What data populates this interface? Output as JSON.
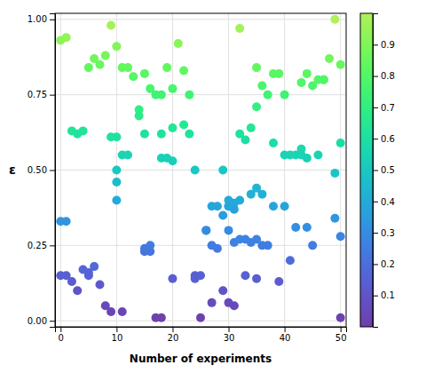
{
  "chart_data": {
    "type": "scatter",
    "xlabel": "Number of experiments",
    "ylabel": "ε",
    "xlim": [
      -1,
      51
    ],
    "ylim": [
      -0.02,
      1.02
    ],
    "xticks": [
      0,
      10,
      20,
      30,
      40,
      50
    ],
    "yticks": [
      {
        "value": 0,
        "label": "0.00"
      },
      {
        "value": 0.25,
        "label": "0.25"
      },
      {
        "value": 0.5,
        "label": "0.50"
      },
      {
        "value": 0.75,
        "label": "0.75"
      },
      {
        "value": 1.0,
        "label": "1.00"
      }
    ],
    "grid": true,
    "colorbar_lim": [
      0,
      1
    ],
    "colorbar_ticks": [
      0.1,
      0.2,
      0.3,
      0.4,
      0.5,
      0.6,
      0.7,
      0.8,
      0.9
    ],
    "x": [
      0,
      0,
      0,
      1,
      1,
      1,
      2,
      2,
      3,
      3,
      4,
      4,
      5,
      5,
      5,
      6,
      6,
      7,
      7,
      8,
      8,
      9,
      9,
      9,
      10,
      10,
      10,
      10,
      10,
      11,
      11,
      11,
      12,
      12,
      13,
      14,
      14,
      15,
      15,
      15,
      15,
      16,
      16,
      16,
      17,
      17,
      18,
      18,
      18,
      18,
      19,
      19,
      20,
      20,
      20,
      20,
      21,
      22,
      22,
      23,
      23,
      24,
      24,
      24,
      25,
      25,
      26,
      26,
      27,
      27,
      27,
      28,
      28,
      29,
      29,
      29,
      30,
      30,
      30,
      30,
      30,
      31,
      31,
      31,
      31,
      32,
      32,
      32,
      32,
      33,
      33,
      33,
      34,
      34,
      34,
      35,
      35,
      35,
      35,
      35,
      36,
      36,
      36,
      37,
      37,
      38,
      38,
      38,
      39,
      39,
      40,
      40,
      40,
      41,
      41,
      42,
      42,
      43,
      43,
      43,
      44,
      44,
      44,
      45,
      45,
      46,
      46,
      47,
      47,
      48,
      49,
      49,
      49,
      50,
      50,
      50,
      50
    ],
    "values": [
      0.93,
      0.15,
      0.33,
      0.94,
      0.15,
      0.33,
      0.63,
      0.13,
      0.62,
      0.1,
      0.63,
      0.17,
      0.84,
      0.15,
      0.16,
      0.87,
      0.18,
      0.85,
      0.12,
      0.88,
      0.05,
      0.98,
      0.61,
      0.03,
      0.91,
      0.61,
      0.5,
      0.46,
      0.4,
      0.84,
      0.55,
      0.03,
      0.84,
      0.55,
      0.81,
      0.7,
      0.68,
      0.82,
      0.62,
      0.24,
      0.23,
      0.77,
      0.25,
      0.23,
      0.75,
      0.01,
      0.75,
      0.62,
      0.54,
      0.01,
      0.84,
      0.54,
      0.77,
      0.64,
      0.53,
      0.14,
      0.92,
      0.83,
      0.65,
      0.75,
      0.62,
      0.5,
      0.15,
      0.14,
      0.15,
      0.01,
      0.3,
      0.3,
      0.38,
      0.25,
      0.06,
      0.38,
      0.24,
      0.5,
      0.35,
      0.1,
      0.4,
      0.38,
      0.38,
      0.3,
      0.06,
      0.39,
      0.37,
      0.26,
      0.05,
      0.97,
      0.62,
      0.4,
      0.27,
      0.6,
      0.27,
      0.15,
      0.64,
      0.42,
      0.26,
      0.84,
      0.71,
      0.44,
      0.27,
      0.14,
      0.78,
      0.42,
      0.25,
      0.75,
      0.25,
      0.82,
      0.59,
      0.38,
      0.82,
      0.13,
      0.75,
      0.55,
      0.38,
      0.55,
      0.2,
      0.55,
      0.31,
      0.79,
      0.57,
      0.55,
      0.82,
      0.54,
      0.31,
      0.78,
      0.25,
      0.8,
      0.55,
      0.8,
      0.8,
      0.87,
      1.0,
      0.49,
      0.34,
      0.85,
      0.59,
      0.28,
      0.01
    ]
  }
}
